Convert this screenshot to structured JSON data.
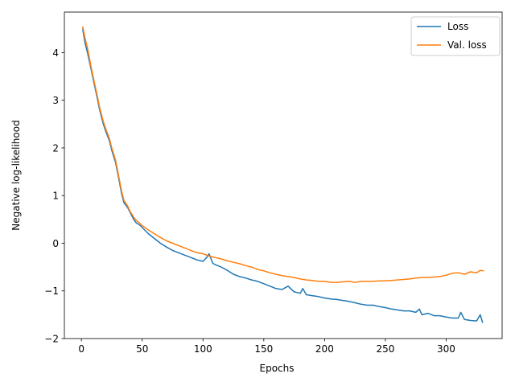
{
  "chart_data": {
    "type": "line",
    "title": "",
    "xlabel": "Epochs",
    "ylabel": "Negative log-likelihood",
    "xlim": [
      -14,
      346
    ],
    "ylim": [
      -2,
      4.85
    ],
    "xticks": [
      0,
      50,
      100,
      150,
      200,
      250,
      300
    ],
    "xtick_labels": [
      "0",
      "50",
      "100",
      "150",
      "200",
      "250",
      "300"
    ],
    "yticks": [
      -2,
      -1,
      0,
      1,
      2,
      3,
      4
    ],
    "ytick_labels": [
      "−2",
      "−1",
      "0",
      "1",
      "2",
      "3",
      "4"
    ],
    "grid": false,
    "legend": "top-right",
    "series": [
      {
        "name": "Loss",
        "color": "#1f77b4",
        "x": [
          1,
          3,
          5,
          8,
          10,
          13,
          15,
          18,
          20,
          23,
          25,
          28,
          30,
          33,
          35,
          38,
          40,
          43,
          45,
          48,
          50,
          55,
          60,
          65,
          70,
          75,
          80,
          85,
          90,
          95,
          100,
          103,
          105,
          108,
          110,
          115,
          120,
          125,
          130,
          135,
          140,
          145,
          150,
          155,
          160,
          165,
          170,
          175,
          180,
          182,
          185,
          190,
          195,
          200,
          205,
          210,
          215,
          220,
          225,
          230,
          235,
          240,
          245,
          250,
          255,
          260,
          265,
          270,
          275,
          278,
          280,
          285,
          290,
          295,
          300,
          305,
          310,
          312,
          315,
          320,
          325,
          328,
          330
        ],
        "y": [
          4.5,
          4.2,
          4.0,
          3.65,
          3.4,
          3.05,
          2.8,
          2.5,
          2.35,
          2.15,
          1.95,
          1.7,
          1.45,
          1.05,
          0.85,
          0.75,
          0.65,
          0.5,
          0.43,
          0.38,
          0.33,
          0.2,
          0.1,
          0.0,
          -0.08,
          -0.15,
          -0.2,
          -0.25,
          -0.3,
          -0.35,
          -0.38,
          -0.3,
          -0.22,
          -0.42,
          -0.45,
          -0.5,
          -0.57,
          -0.65,
          -0.7,
          -0.73,
          -0.77,
          -0.8,
          -0.85,
          -0.9,
          -0.95,
          -0.97,
          -0.9,
          -1.02,
          -1.05,
          -0.95,
          -1.08,
          -1.1,
          -1.12,
          -1.15,
          -1.17,
          -1.18,
          -1.2,
          -1.22,
          -1.25,
          -1.28,
          -1.3,
          -1.3,
          -1.33,
          -1.35,
          -1.38,
          -1.4,
          -1.42,
          -1.42,
          -1.45,
          -1.38,
          -1.5,
          -1.47,
          -1.52,
          -1.52,
          -1.55,
          -1.57,
          -1.57,
          -1.45,
          -1.6,
          -1.62,
          -1.63,
          -1.5,
          -1.67
        ]
      },
      {
        "name": "Val. loss",
        "color": "#ff7f0e",
        "x": [
          1,
          3,
          5,
          8,
          10,
          13,
          15,
          18,
          20,
          23,
          25,
          28,
          30,
          33,
          35,
          38,
          40,
          43,
          45,
          48,
          50,
          55,
          60,
          65,
          70,
          75,
          80,
          85,
          90,
          95,
          100,
          105,
          110,
          115,
          120,
          125,
          130,
          135,
          140,
          145,
          150,
          155,
          160,
          165,
          170,
          175,
          180,
          185,
          190,
          195,
          200,
          205,
          210,
          215,
          220,
          225,
          230,
          235,
          240,
          245,
          250,
          255,
          260,
          265,
          270,
          275,
          280,
          285,
          290,
          295,
          300,
          305,
          310,
          315,
          320,
          325,
          328,
          331
        ],
        "y": [
          4.55,
          4.3,
          4.1,
          3.7,
          3.45,
          3.1,
          2.85,
          2.55,
          2.4,
          2.2,
          2.0,
          1.75,
          1.5,
          1.1,
          0.9,
          0.78,
          0.67,
          0.55,
          0.48,
          0.42,
          0.37,
          0.28,
          0.2,
          0.12,
          0.05,
          0.0,
          -0.05,
          -0.1,
          -0.15,
          -0.2,
          -0.22,
          -0.27,
          -0.3,
          -0.33,
          -0.37,
          -0.4,
          -0.43,
          -0.47,
          -0.5,
          -0.55,
          -0.58,
          -0.62,
          -0.65,
          -0.68,
          -0.7,
          -0.72,
          -0.75,
          -0.77,
          -0.78,
          -0.8,
          -0.8,
          -0.82,
          -0.82,
          -0.81,
          -0.8,
          -0.82,
          -0.8,
          -0.8,
          -0.8,
          -0.79,
          -0.79,
          -0.78,
          -0.77,
          -0.76,
          -0.75,
          -0.73,
          -0.72,
          -0.72,
          -0.71,
          -0.7,
          -0.67,
          -0.63,
          -0.62,
          -0.65,
          -0.6,
          -0.62,
          -0.57,
          -0.58
        ]
      }
    ]
  }
}
